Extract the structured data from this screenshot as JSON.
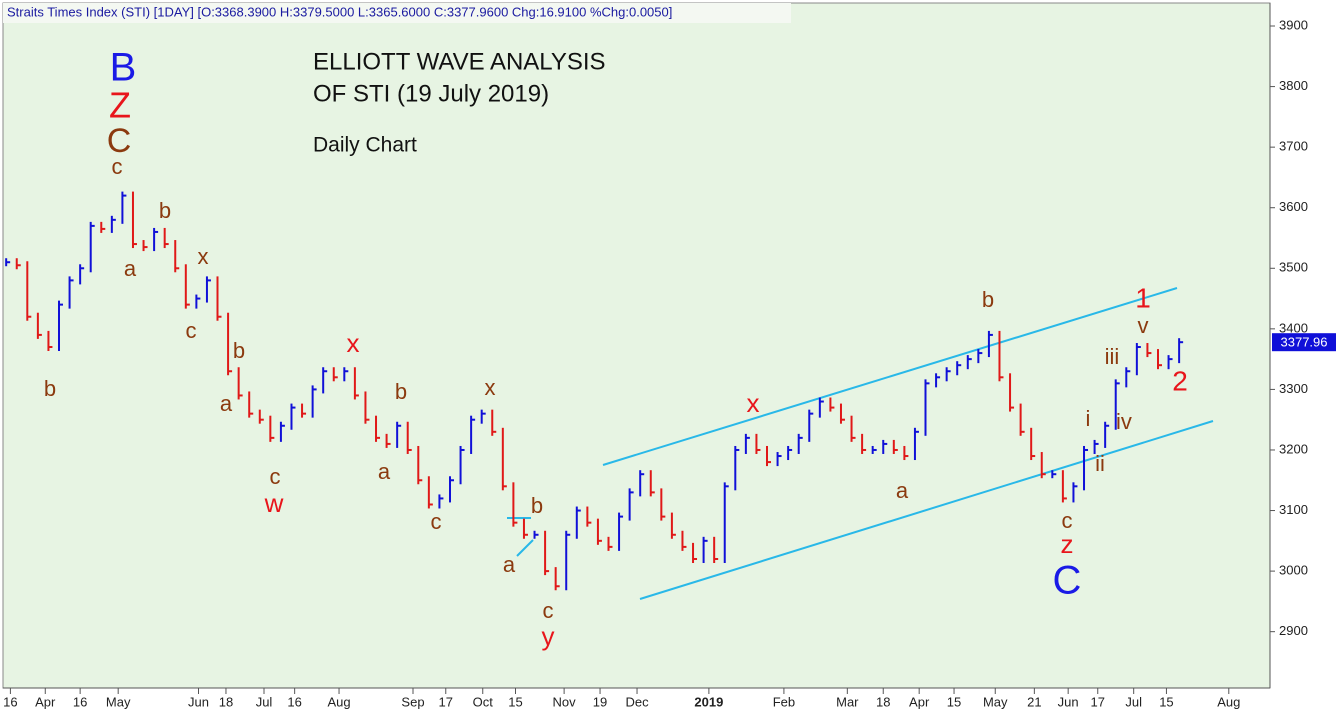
{
  "chart_data": {
    "type": "bar_chart",
    "header": "Straits Times Index (STI) [1DAY] [O:3368.3900 H:3379.5000 L:3365.6000 C:3377.9600 Chg:16.9100 %Chg:0.0050]",
    "title": "ELLIOTT WAVE ANALYSIS",
    "title2": "OF STI (19 July 2019)",
    "subtitle": "Daily Chart",
    "up_color": "#1010d8",
    "down_color": "#e01818",
    "close": [
      3510,
      3505,
      3420,
      3390,
      3370,
      3440,
      3480,
      3500,
      3570,
      3565,
      3580,
      3620,
      3540,
      3535,
      3560,
      3540,
      3500,
      3440,
      3450,
      3480,
      3420,
      3330,
      3290,
      3260,
      3250,
      3220,
      3240,
      3270,
      3260,
      3300,
      3330,
      3320,
      3330,
      3290,
      3250,
      3220,
      3210,
      3240,
      3200,
      3150,
      3110,
      3120,
      3150,
      3200,
      3250,
      3260,
      3230,
      3140,
      3080,
      3060,
      3060,
      3000,
      2975,
      3060,
      3100,
      3080,
      3050,
      3040,
      3090,
      3130,
      3160,
      3130,
      3090,
      3060,
      3040,
      3020,
      3050,
      3020,
      3140,
      3200,
      3220,
      3200,
      3180,
      3190,
      3200,
      3220,
      3260,
      3280,
      3270,
      3250,
      3220,
      3200,
      3200,
      3210,
      3200,
      3190,
      3230,
      3310,
      3320,
      3330,
      3340,
      3350,
      3360,
      3390,
      3320,
      3270,
      3230,
      3190,
      3160,
      3160,
      3120,
      3140,
      3200,
      3210,
      3240,
      3310,
      3330,
      3370,
      3360,
      3340,
      3350,
      3377.96
    ],
    "xlim": [
      -0.3,
      119.6
    ],
    "xticks": [
      {
        "value": 0.4,
        "label": "16"
      },
      {
        "value": 3.7,
        "label": "Apr"
      },
      {
        "value": 7.0,
        "label": "16"
      },
      {
        "value": 10.6,
        "label": "May"
      },
      {
        "value": 18.2,
        "label": "Jun"
      },
      {
        "value": 20.8,
        "label": "18"
      },
      {
        "value": 24.4,
        "label": "Jul"
      },
      {
        "value": 27.3,
        "label": "16"
      },
      {
        "value": 31.5,
        "label": "Aug"
      },
      {
        "value": 38.5,
        "label": "Sep"
      },
      {
        "value": 41.6,
        "label": "17"
      },
      {
        "value": 45.1,
        "label": "Oct"
      },
      {
        "value": 48.2,
        "label": "15"
      },
      {
        "value": 52.8,
        "label": "Nov"
      },
      {
        "value": 56.2,
        "label": "19"
      },
      {
        "value": 59.7,
        "label": "Dec"
      },
      {
        "value": 66.5,
        "label": "2019"
      },
      {
        "value": 73.6,
        "label": "Feb"
      },
      {
        "value": 79.6,
        "label": "Mar"
      },
      {
        "value": 83.0,
        "label": "18"
      },
      {
        "value": 86.4,
        "label": "Apr"
      },
      {
        "value": 89.7,
        "label": "15"
      },
      {
        "value": 93.6,
        "label": "May"
      },
      {
        "value": 97.3,
        "label": "21"
      },
      {
        "value": 100.5,
        "label": "Jun"
      },
      {
        "value": 103.3,
        "label": "17"
      },
      {
        "value": 106.7,
        "label": "Jul"
      },
      {
        "value": 109.8,
        "label": "15"
      },
      {
        "value": 115.7,
        "label": "Aug"
      }
    ],
    "ylim": [
      2807,
      3938
    ],
    "yticks": [
      2900,
      3000,
      3100,
      3200,
      3300,
      3400,
      3500,
      3600,
      3700,
      3800,
      3900
    ],
    "annotations": [
      "B",
      "Z",
      "C",
      "c",
      "b",
      "a",
      "x",
      "c",
      "b",
      "b",
      "a",
      "c",
      "w",
      "x",
      "b",
      "a",
      "c",
      "x",
      "b",
      "a",
      "c",
      "y",
      "x",
      "a",
      "b",
      "c",
      "z",
      "C",
      "i",
      "ii",
      "iii",
      "iv",
      "v",
      "1",
      "2"
    ]
  }
}
